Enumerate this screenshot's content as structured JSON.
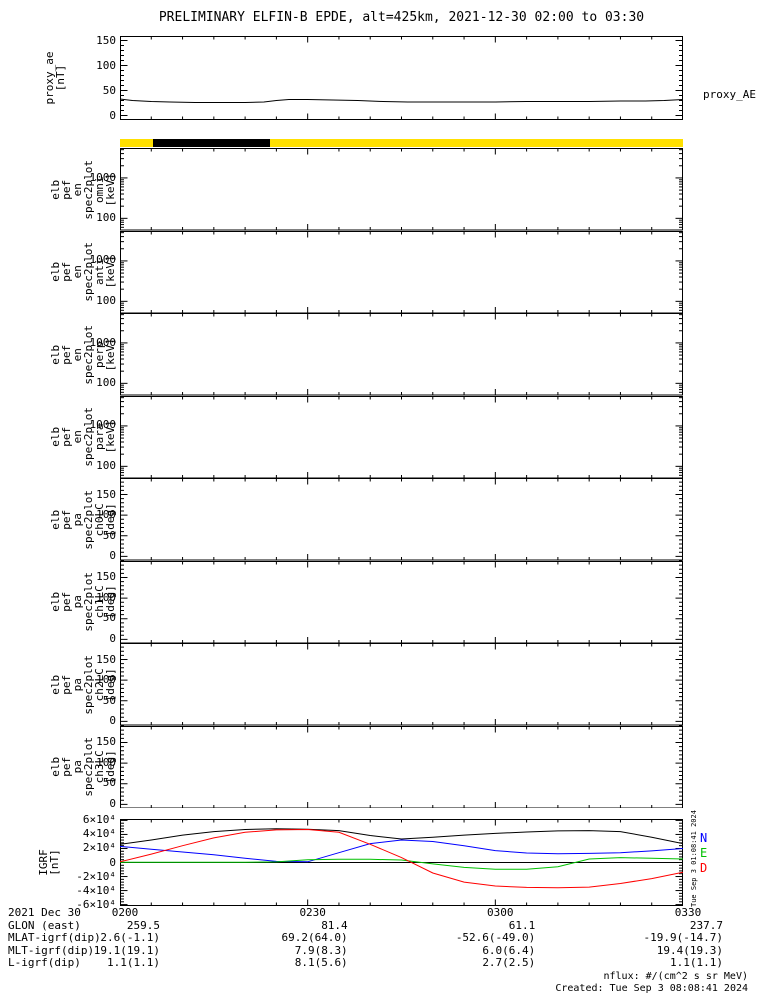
{
  "title": "PRELIMINARY ELFIN-B EPDE, alt=425km, 2021-12-30 02:00 to 03:30",
  "proxy_right_label": "proxy_AE",
  "side_note": "Tue Sep 3 01:08:41 2024",
  "footer": {
    "nflux_units": "nflux: #/(cm^2 s sr MeV)",
    "created": "Created: Tue Sep  3 08:08:41 2024"
  },
  "legend": [
    {
      "label": "N",
      "color": "#0000ff"
    },
    {
      "label": "E",
      "color": "#00c000"
    },
    {
      "label": "D",
      "color": "#ff0000"
    }
  ],
  "status_bar": {
    "segments": [
      {
        "color": "#ffe000",
        "from": 0.0,
        "to": 0.058
      },
      {
        "color": "#000000",
        "from": 0.058,
        "to": 0.266
      },
      {
        "color": "#ffe000",
        "from": 0.266,
        "to": 1.0
      }
    ]
  },
  "xaxis": {
    "range_minutes": [
      0,
      90
    ],
    "major_ticks_minutes": [
      30,
      60
    ],
    "minor_step_minutes": 5,
    "tick_times": [
      "0200",
      "0230",
      "0300",
      "0330"
    ]
  },
  "ephemeris": {
    "row_labels": [
      "2021 Dec 30",
      "GLON (east)",
      "MLAT-igrf(dip)",
      "MLT-igrf(dip)",
      "L-igrf(dip)"
    ],
    "columns": [
      [
        "0200",
        "259.5",
        "2.6(-1.1)",
        "19.1(19.1)",
        "1.1(1.1)"
      ],
      [
        "0230",
        "81.4",
        "69.2(64.0)",
        "7.9(8.3)",
        "8.1(5.6)"
      ],
      [
        "0300",
        "61.1",
        "-52.6(-49.0)",
        "6.0(6.4)",
        "2.7(2.5)"
      ],
      [
        "0330",
        "237.7",
        "-19.9(-14.7)",
        "19.4(19.3)",
        "1.1(1.1)"
      ]
    ]
  },
  "chart_data": [
    {
      "id": "proxy_ae",
      "type": "line",
      "scale": "linear",
      "label_lines": [
        "proxy_ae",
        "[nT]"
      ],
      "range": [
        -9,
        159
      ],
      "minor_step": 10,
      "yticks": [
        {
          "v": 150,
          "l": "150"
        },
        {
          "v": 100,
          "l": "100"
        },
        {
          "v": 50,
          "l": "50"
        },
        {
          "v": 0,
          "l": "0"
        }
      ],
      "series": [
        {
          "name": "proxy_AE",
          "color": "#000000",
          "x": [
            0,
            2,
            5,
            8,
            12,
            16,
            20,
            23,
            25,
            27,
            30,
            34,
            38,
            42,
            46,
            50,
            55,
            60,
            65,
            70,
            75,
            80,
            84,
            87,
            90
          ],
          "y": [
            33,
            30,
            28,
            27,
            26,
            26,
            26,
            27,
            30,
            32,
            32,
            31,
            30,
            28,
            27,
            27,
            27,
            27,
            28,
            28,
            28,
            29,
            29,
            30,
            32
          ]
        }
      ]
    },
    {
      "id": "en_omni",
      "type": "spectrogram",
      "scale": "log",
      "label_lines": [
        "elb",
        "pef",
        "en",
        "spec2plot",
        "omni",
        "[keV]"
      ],
      "range": [
        50,
        5500
      ],
      "yticks": [
        {
          "v": 1000,
          "l": "1000"
        },
        {
          "v": 100,
          "l": "100"
        }
      ],
      "series": []
    },
    {
      "id": "en_anti",
      "type": "spectrogram",
      "scale": "log",
      "label_lines": [
        "elb",
        "pef",
        "en",
        "spec2plot",
        "anti",
        "[keV]"
      ],
      "range": [
        50,
        5500
      ],
      "yticks": [
        {
          "v": 1000,
          "l": "1000"
        },
        {
          "v": 100,
          "l": "100"
        }
      ],
      "series": []
    },
    {
      "id": "en_perp",
      "type": "spectrogram",
      "scale": "log",
      "label_lines": [
        "elb",
        "pef",
        "en",
        "spec2plot",
        "perp",
        "[keV]"
      ],
      "range": [
        50,
        5500
      ],
      "yticks": [
        {
          "v": 1000,
          "l": "1000"
        },
        {
          "v": 100,
          "l": "100"
        }
      ],
      "series": []
    },
    {
      "id": "en_para",
      "type": "spectrogram",
      "scale": "log",
      "label_lines": [
        "elb",
        "pef",
        "en",
        "spec2plot",
        "para",
        "[keV]"
      ],
      "range": [
        50,
        5500
      ],
      "yticks": [
        {
          "v": 1000,
          "l": "1000"
        },
        {
          "v": 100,
          "l": "100"
        }
      ],
      "series": []
    },
    {
      "id": "pa_ch0lc",
      "type": "spectrogram",
      "scale": "linear",
      "label_lines": [
        "elb",
        "pef",
        "pa",
        "spec2plot",
        "ch0LC",
        "[deg]"
      ],
      "range": [
        -10,
        190
      ],
      "minor_step": 10,
      "yticks": [
        {
          "v": 150,
          "l": "150"
        },
        {
          "v": 100,
          "l": "100"
        },
        {
          "v": 50,
          "l": "50"
        },
        {
          "v": 0,
          "l": "0"
        }
      ],
      "series": []
    },
    {
      "id": "pa_ch1lc",
      "type": "spectrogram",
      "scale": "linear",
      "label_lines": [
        "elb",
        "pef",
        "pa",
        "spec2plot",
        "ch1LC",
        "[deg]"
      ],
      "range": [
        -10,
        190
      ],
      "minor_step": 10,
      "yticks": [
        {
          "v": 150,
          "l": "150"
        },
        {
          "v": 100,
          "l": "100"
        },
        {
          "v": 50,
          "l": "50"
        },
        {
          "v": 0,
          "l": "0"
        }
      ],
      "series": []
    },
    {
      "id": "pa_ch2lc",
      "type": "spectrogram",
      "scale": "linear",
      "label_lines": [
        "elb",
        "pef",
        "pa",
        "spec2plot",
        "ch2LC",
        "[deg]"
      ],
      "range": [
        -10,
        190
      ],
      "minor_step": 10,
      "yticks": [
        {
          "v": 150,
          "l": "150"
        },
        {
          "v": 100,
          "l": "100"
        },
        {
          "v": 50,
          "l": "50"
        },
        {
          "v": 0,
          "l": "0"
        }
      ],
      "series": []
    },
    {
      "id": "pa_ch3lc",
      "type": "spectrogram",
      "scale": "linear",
      "label_lines": [
        "elb",
        "pef",
        "pa",
        "spec2plot",
        "ch3LC",
        "[deg]"
      ],
      "range": [
        -10,
        190
      ],
      "minor_step": 10,
      "yticks": [
        {
          "v": 150,
          "l": "150"
        },
        {
          "v": 100,
          "l": "100"
        },
        {
          "v": 50,
          "l": "50"
        },
        {
          "v": 0,
          "l": "0"
        }
      ],
      "series": []
    },
    {
      "id": "igrf",
      "type": "line",
      "scale": "linear",
      "label_lines": [
        "IGRF",
        "[nT]"
      ],
      "range": [
        -62000,
        62000
      ],
      "minor_step": 4000,
      "zero_line": true,
      "yticks": [
        {
          "v": 60000,
          "l": "6×10⁴"
        },
        {
          "v": 40000,
          "l": "4×10⁴"
        },
        {
          "v": 20000,
          "l": "2×10⁴"
        },
        {
          "v": 0,
          "l": "0"
        },
        {
          "v": -20000,
          "l": "-2×10⁴"
        },
        {
          "v": -40000,
          "l": "-4×10⁴"
        },
        {
          "v": -60000,
          "l": "-6×10⁴"
        }
      ],
      "series": [
        {
          "name": "Btotal",
          "color": "#000000",
          "x": [
            0,
            5,
            10,
            15,
            20,
            25,
            30,
            35,
            40,
            45,
            50,
            55,
            60,
            65,
            70,
            75,
            80,
            85,
            90
          ],
          "y": [
            26000,
            32000,
            39000,
            44000,
            47000,
            48000,
            47500,
            45500,
            38500,
            33500,
            36000,
            39000,
            41500,
            43500,
            45000,
            45500,
            44000,
            36000,
            27000
          ]
        },
        {
          "name": "N",
          "color": "#0000ff",
          "x": [
            0,
            5,
            10,
            15,
            20,
            25,
            30,
            35,
            40,
            45,
            50,
            55,
            60,
            65,
            70,
            75,
            80,
            85,
            90
          ],
          "y": [
            23000,
            19000,
            15000,
            11000,
            6000,
            1500,
            1000,
            14000,
            27000,
            32000,
            30000,
            24000,
            17000,
            13500,
            12500,
            13000,
            14000,
            16500,
            20000
          ]
        },
        {
          "name": "E",
          "color": "#00c000",
          "x": [
            0,
            5,
            10,
            15,
            20,
            25,
            30,
            35,
            40,
            45,
            50,
            55,
            60,
            65,
            70,
            75,
            80,
            85,
            90
          ],
          "y": [
            300,
            300,
            300,
            300,
            400,
            800,
            4000,
            4500,
            4500,
            3500,
            -2000,
            -7000,
            -9500,
            -9500,
            -6000,
            5000,
            7000,
            6000,
            5000
          ]
        },
        {
          "name": "D",
          "color": "#ff0000",
          "x": [
            0,
            5,
            10,
            15,
            20,
            25,
            30,
            35,
            40,
            45,
            50,
            55,
            60,
            65,
            70,
            75,
            80,
            85,
            90
          ],
          "y": [
            1000,
            12000,
            24000,
            35000,
            43000,
            46500,
            47000,
            43000,
            26000,
            7000,
            -15000,
            -28000,
            -33500,
            -35500,
            -36000,
            -35000,
            -30000,
            -23000,
            -14000
          ]
        }
      ]
    }
  ]
}
